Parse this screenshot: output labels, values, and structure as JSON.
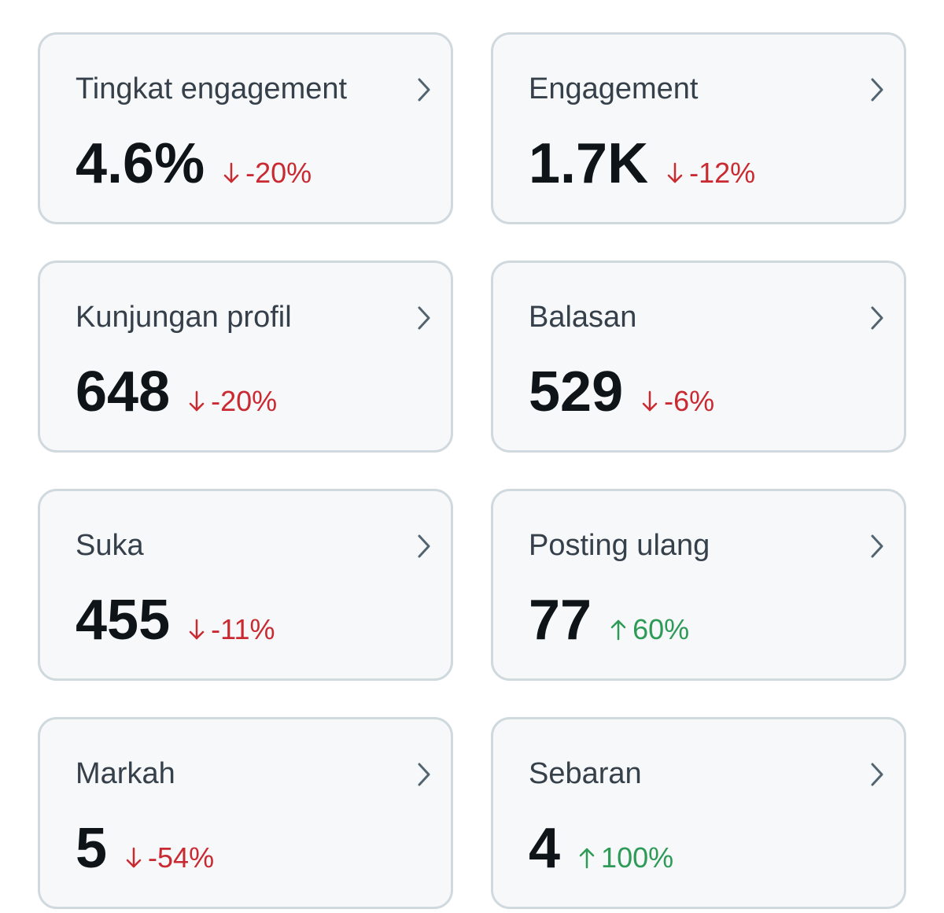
{
  "cards": [
    {
      "title": "Tingkat engagement",
      "value": "4.6%",
      "change": "-20%",
      "trend": "down"
    },
    {
      "title": "Engagement",
      "value": "1.7K",
      "change": "-12%",
      "trend": "down"
    },
    {
      "title": "Kunjungan profil",
      "value": "648",
      "change": "-20%",
      "trend": "down"
    },
    {
      "title": "Balasan",
      "value": "529",
      "change": "-6%",
      "trend": "down"
    },
    {
      "title": "Suka",
      "value": "455",
      "change": "-11%",
      "trend": "down"
    },
    {
      "title": "Posting ulang",
      "value": "77",
      "change": "60%",
      "trend": "up"
    },
    {
      "title": "Markah",
      "value": "5",
      "change": "-54%",
      "trend": "down"
    },
    {
      "title": "Sebaran",
      "value": "4",
      "change": "100%",
      "trend": "up"
    }
  ],
  "colors": {
    "down": "#c92a32",
    "up": "#2e9a57",
    "card_background": "#f6f8f9",
    "card_border": "#cfd9de"
  },
  "icons": {
    "chevron": "chevron-right-icon",
    "down": "arrow-down-icon",
    "up": "arrow-up-icon"
  }
}
